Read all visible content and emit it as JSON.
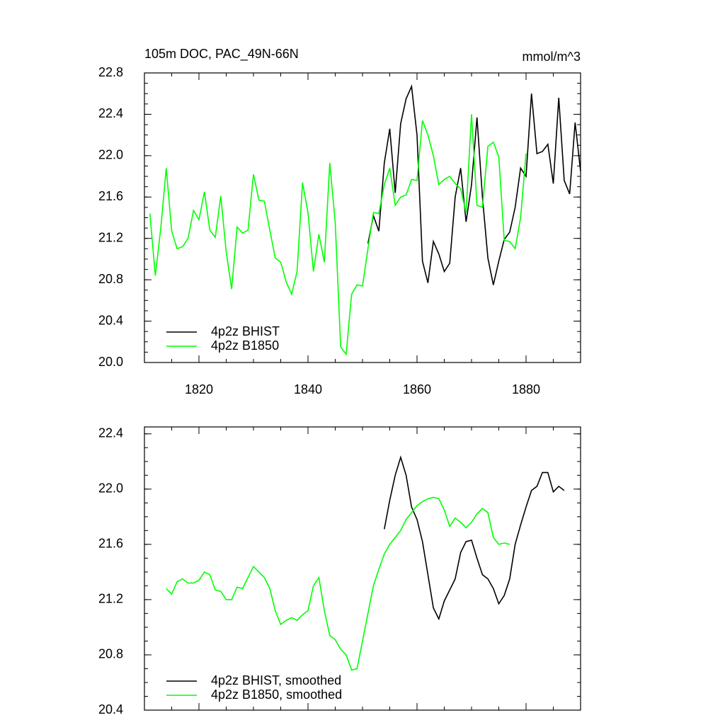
{
  "chart_data": [
    {
      "type": "line",
      "title": "105m DOC, PAC_49N-66N",
      "units": "mmol/m^3",
      "x": [
        1811,
        1812,
        1813,
        1814,
        1815,
        1816,
        1817,
        1818,
        1819,
        1820,
        1821,
        1822,
        1823,
        1824,
        1825,
        1826,
        1827,
        1828,
        1829,
        1830,
        1831,
        1832,
        1833,
        1834,
        1835,
        1836,
        1837,
        1838,
        1839,
        1840,
        1841,
        1842,
        1843,
        1844,
        1845,
        1846,
        1847,
        1848,
        1849,
        1850,
        1851,
        1852,
        1853,
        1854,
        1855,
        1856,
        1857,
        1858,
        1859,
        1860,
        1861,
        1862,
        1863,
        1864,
        1865,
        1866,
        1867,
        1868,
        1869,
        1870,
        1871,
        1872,
        1873,
        1874,
        1875,
        1876,
        1877,
        1878,
        1879,
        1880,
        1881,
        1882,
        1883,
        1884,
        1885,
        1886,
        1887,
        1888,
        1889,
        1890
      ],
      "series": [
        {
          "name": "4p2z BHIST",
          "color": "#000000",
          "values": [
            null,
            null,
            null,
            null,
            null,
            null,
            null,
            null,
            null,
            null,
            null,
            null,
            null,
            null,
            null,
            null,
            null,
            null,
            null,
            null,
            null,
            null,
            null,
            null,
            null,
            null,
            null,
            null,
            null,
            null,
            null,
            null,
            null,
            null,
            null,
            null,
            null,
            null,
            null,
            null,
            21.15,
            21.42,
            21.27,
            21.93,
            22.26,
            21.64,
            22.31,
            22.55,
            22.67,
            22.2,
            20.98,
            20.77,
            21.17,
            21.05,
            20.88,
            20.96,
            21.6,
            21.88,
            21.36,
            21.72,
            22.37,
            21.6,
            21.01,
            20.75,
            20.98,
            21.19,
            21.26,
            21.5,
            21.88,
            21.8,
            22.6,
            22.02,
            22.04,
            22.11,
            21.73,
            22.56,
            21.76,
            21.63,
            22.32,
            21.85
          ]
        },
        {
          "name": "4p2z B1850",
          "color": "#00ff00",
          "values": [
            21.44,
            20.84,
            21.3,
            21.88,
            21.27,
            21.1,
            21.12,
            21.2,
            21.47,
            21.38,
            21.65,
            21.28,
            21.21,
            21.61,
            21.07,
            20.71,
            21.31,
            21.25,
            21.28,
            21.82,
            21.57,
            21.56,
            21.28,
            21.01,
            20.97,
            20.78,
            20.66,
            20.88,
            21.74,
            21.45,
            20.88,
            21.24,
            20.97,
            21.93,
            21.35,
            20.15,
            20.08,
            20.66,
            20.75,
            20.74,
            21.1,
            21.45,
            21.44,
            21.72,
            21.88,
            21.52,
            21.6,
            21.62,
            21.77,
            21.76,
            22.34,
            22.2,
            22.0,
            21.72,
            21.77,
            21.8,
            21.73,
            21.68,
            21.45,
            22.4,
            21.52,
            21.5,
            22.09,
            22.13,
            21.99,
            21.18,
            21.17,
            21.1,
            21.4,
            22.02,
            null,
            null,
            null,
            null,
            null,
            null,
            null,
            null,
            null,
            null
          ]
        }
      ],
      "xlim": [
        1810,
        1890
      ],
      "xticks": [
        1820,
        1840,
        1860,
        1880
      ],
      "show_xtick_labels": true,
      "ylim": [
        20.0,
        22.8
      ],
      "yticks": [
        {
          "value": 20.0,
          "label": "20.0"
        },
        20.4,
        20.8,
        21.2,
        21.6,
        {
          "value": 22.0,
          "label": "22.0"
        },
        22.4,
        22.8
      ]
    },
    {
      "type": "line",
      "x": [
        1814,
        1815,
        1816,
        1817,
        1818,
        1819,
        1820,
        1821,
        1822,
        1823,
        1824,
        1825,
        1826,
        1827,
        1828,
        1829,
        1830,
        1831,
        1832,
        1833,
        1834,
        1835,
        1836,
        1837,
        1838,
        1839,
        1840,
        1841,
        1842,
        1843,
        1844,
        1845,
        1846,
        1847,
        1848,
        1849,
        1850,
        1851,
        1852,
        1853,
        1854,
        1855,
        1856,
        1857,
        1858,
        1859,
        1860,
        1861,
        1862,
        1863,
        1864,
        1865,
        1866,
        1867,
        1868,
        1869,
        1870,
        1871,
        1872,
        1873,
        1874,
        1875,
        1876,
        1877,
        1878,
        1879,
        1880,
        1881,
        1882,
        1883,
        1884,
        1885,
        1886,
        1887
      ],
      "series": [
        {
          "name": "4p2z BHIST, smoothed",
          "color": "#000000",
          "values": [
            null,
            null,
            null,
            null,
            null,
            null,
            null,
            null,
            null,
            null,
            null,
            null,
            null,
            null,
            null,
            null,
            null,
            null,
            null,
            null,
            null,
            null,
            null,
            null,
            null,
            null,
            null,
            null,
            null,
            null,
            null,
            null,
            null,
            null,
            null,
            null,
            null,
            null,
            null,
            null,
            21.71,
            21.92,
            22.1,
            22.23,
            22.1,
            21.87,
            21.78,
            21.62,
            21.38,
            21.14,
            21.06,
            21.19,
            21.27,
            21.35,
            21.54,
            21.62,
            21.63,
            21.5,
            21.38,
            21.35,
            21.28,
            21.17,
            21.23,
            21.35,
            21.6,
            21.74,
            21.87,
            21.99,
            22.02,
            22.12,
            22.12,
            21.98,
            22.02,
            21.99
          ]
        },
        {
          "name": "4p2z B1850, smoothed",
          "color": "#00ff00",
          "values": [
            21.28,
            21.24,
            21.33,
            21.35,
            21.32,
            21.32,
            21.34,
            21.4,
            21.38,
            21.27,
            21.26,
            21.2,
            21.2,
            21.29,
            21.28,
            21.36,
            21.44,
            21.4,
            21.36,
            21.28,
            21.12,
            21.02,
            21.05,
            21.07,
            21.05,
            21.09,
            21.12,
            21.3,
            21.36,
            21.12,
            20.94,
            20.91,
            20.84,
            20.8,
            20.69,
            20.7,
            20.9,
            21.1,
            21.3,
            21.42,
            21.53,
            21.6,
            21.65,
            21.7,
            21.78,
            21.83,
            21.88,
            21.91,
            21.93,
            21.94,
            21.93,
            21.85,
            21.73,
            21.79,
            21.76,
            21.72,
            21.76,
            21.82,
            21.86,
            21.83,
            21.65,
            21.6,
            21.61,
            21.6,
            null,
            null,
            null,
            null,
            null,
            null,
            null,
            null,
            null,
            null
          ]
        }
      ],
      "xlim": [
        1810,
        1890
      ],
      "xticks": [
        1820,
        1840,
        1860,
        1880
      ],
      "show_xtick_labels": false,
      "ylim": [
        20.4,
        22.45
      ],
      "yticks": [
        20.4,
        20.8,
        21.2,
        21.6,
        {
          "value": 22.0,
          "label": "22.0"
        },
        22.4
      ]
    }
  ]
}
